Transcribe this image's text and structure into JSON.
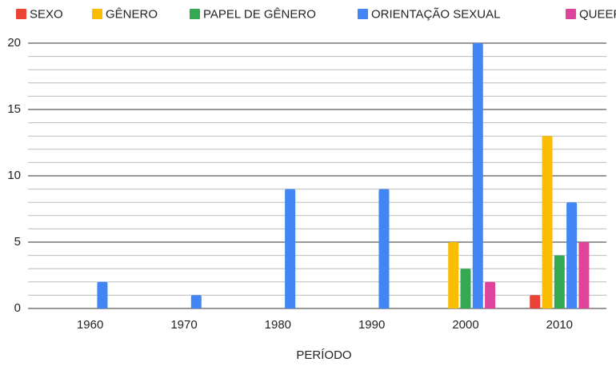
{
  "chart_data": {
    "type": "bar",
    "categories": [
      "1960",
      "1970",
      "1980",
      "1990",
      "2000",
      "2010"
    ],
    "series": [
      {
        "name": "SEXO",
        "color": "#ea4335",
        "values": [
          0,
          0,
          0,
          0,
          0,
          1
        ]
      },
      {
        "name": "GÊNERO",
        "color": "#fbbc04",
        "values": [
          0,
          0,
          0,
          0,
          5,
          13
        ]
      },
      {
        "name": "PAPEL DE GÊNERO",
        "color": "#34a853",
        "values": [
          0,
          0,
          0,
          0,
          3,
          4
        ]
      },
      {
        "name": "ORIENTAÇÃO SEXUAL",
        "color": "#4285f4",
        "values": [
          2,
          1,
          9,
          9,
          20,
          8
        ]
      },
      {
        "name": "QUEER",
        "color": "#e0439a",
        "values": [
          0,
          0,
          0,
          0,
          2,
          5
        ]
      }
    ],
    "x_label": "PERÍODO",
    "ylim": [
      0,
      20
    ],
    "yticks": [
      0,
      5,
      10,
      15,
      20
    ],
    "minor_yticks": [
      1,
      2,
      3,
      4,
      6,
      7,
      8,
      9,
      11,
      12,
      13,
      14,
      16,
      17,
      18,
      19
    ],
    "grid": true,
    "legend": "top"
  }
}
